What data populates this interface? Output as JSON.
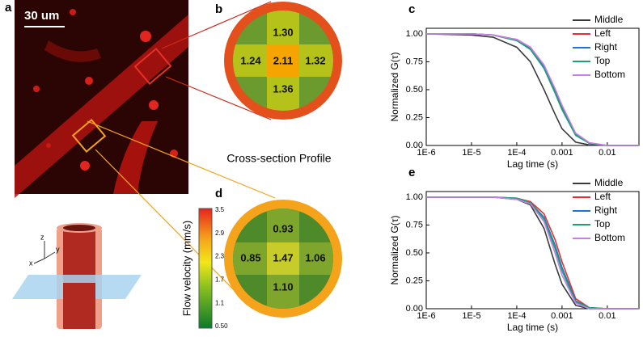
{
  "panel_a": {
    "label": "a",
    "scale_bar": "30 um",
    "axes": {
      "z": "z",
      "y": "y",
      "x": "x"
    },
    "colorbar": {
      "title": "Flow velocity (mm/s)",
      "ticks": [
        "3.5",
        "2.9",
        "2.3",
        "1.7",
        "1.1",
        "0.50"
      ]
    }
  },
  "panel_b": {
    "label": "b",
    "top": "1.30",
    "left": "1.24",
    "center": "2.11",
    "right": "1.32",
    "bottom": "1.36"
  },
  "panel_d": {
    "label": "d",
    "top": "0.93",
    "left": "0.85",
    "center": "1.47",
    "right": "1.06",
    "bottom": "1.10"
  },
  "cross_section_title": "Cross-section Profile",
  "chart_data": [
    {
      "type": "line",
      "label": "c",
      "xlabel": "Lag time (s)",
      "ylabel": "Normalized G(τ)",
      "xscale": "log",
      "legend": "upper right",
      "x": [
        1e-06,
        1e-05,
        3e-05,
        0.0001,
        0.0002,
        0.0004,
        0.0007,
        0.001,
        0.002,
        0.004,
        0.01,
        0.05
      ],
      "xlim": [
        1e-06,
        0.05
      ],
      "xticks": [
        {
          "value": 1e-06,
          "label": "1E-6"
        },
        {
          "value": 1e-05,
          "label": "1E-5"
        },
        {
          "value": 0.0001,
          "label": "1E-4"
        },
        0.001,
        0.01
      ],
      "ylim": [
        0,
        1.05
      ],
      "yticks": [
        {
          "value": 0,
          "label": "0.00"
        },
        0.25,
        {
          "value": 0.5,
          "label": "0.50"
        },
        0.75,
        {
          "value": 1,
          "label": "1.00"
        }
      ],
      "series": [
        {
          "name": "Middle",
          "color": "#3a3a3a",
          "values": [
            1,
            0.99,
            0.97,
            0.88,
            0.75,
            0.5,
            0.28,
            0.15,
            0.03,
            0.005,
            0,
            0
          ]
        },
        {
          "name": "Left",
          "color": "#e8302a",
          "values": [
            1,
            1,
            0.99,
            0.95,
            0.88,
            0.72,
            0.5,
            0.34,
            0.1,
            0.02,
            0,
            0
          ]
        },
        {
          "name": "Right",
          "color": "#1f77d4",
          "values": [
            1,
            1,
            0.99,
            0.94,
            0.87,
            0.7,
            0.48,
            0.33,
            0.1,
            0.02,
            0,
            0
          ]
        },
        {
          "name": "Top",
          "color": "#1aa36a",
          "values": [
            1,
            1,
            0.99,
            0.94,
            0.86,
            0.69,
            0.47,
            0.32,
            0.09,
            0.02,
            0,
            0
          ]
        },
        {
          "name": "Bottom",
          "color": "#c77ee8",
          "values": [
            1,
            1,
            0.99,
            0.95,
            0.88,
            0.72,
            0.51,
            0.36,
            0.11,
            0.025,
            0,
            0
          ]
        }
      ]
    },
    {
      "type": "line",
      "label": "e",
      "xlabel": "Lag time (s)",
      "ylabel": "Normalized G(τ)",
      "xscale": "log",
      "legend": "upper right",
      "x": [
        1e-06,
        1e-05,
        3e-05,
        0.0001,
        0.0002,
        0.0004,
        0.0007,
        0.001,
        0.002,
        0.004,
        0.01,
        0.05
      ],
      "xlim": [
        1e-06,
        0.05
      ],
      "xticks": [
        {
          "value": 1e-06,
          "label": "1E-6"
        },
        {
          "value": 1e-05,
          "label": "1E-5"
        },
        {
          "value": 0.0001,
          "label": "1E-4"
        },
        0.001,
        0.01
      ],
      "ylim": [
        0,
        1.05
      ],
      "yticks": [
        {
          "value": 0,
          "label": "0.00"
        },
        0.25,
        {
          "value": 0.5,
          "label": "0.50"
        },
        0.75,
        {
          "value": 1,
          "label": "1.00"
        }
      ],
      "series": [
        {
          "name": "Middle",
          "color": "#3a3a3a",
          "values": [
            1,
            1,
            1,
            0.98,
            0.93,
            0.72,
            0.4,
            0.22,
            0.03,
            0,
            0,
            0
          ]
        },
        {
          "name": "Left",
          "color": "#e8302a",
          "values": [
            1,
            1,
            1,
            0.99,
            0.96,
            0.85,
            0.62,
            0.42,
            0.09,
            0.01,
            0,
            0
          ]
        },
        {
          "name": "Right",
          "color": "#1f77d4",
          "values": [
            1,
            1,
            1,
            0.99,
            0.95,
            0.82,
            0.57,
            0.37,
            0.07,
            0.01,
            0,
            0
          ]
        },
        {
          "name": "Top",
          "color": "#1aa36a",
          "values": [
            1,
            1,
            1,
            0.99,
            0.95,
            0.8,
            0.54,
            0.34,
            0.06,
            0.01,
            0,
            0
          ]
        },
        {
          "name": "Bottom",
          "color": "#c77ee8",
          "values": [
            1,
            1,
            1,
            0.98,
            0.94,
            0.78,
            0.5,
            0.3,
            0.05,
            0,
            0,
            0
          ]
        }
      ]
    }
  ]
}
